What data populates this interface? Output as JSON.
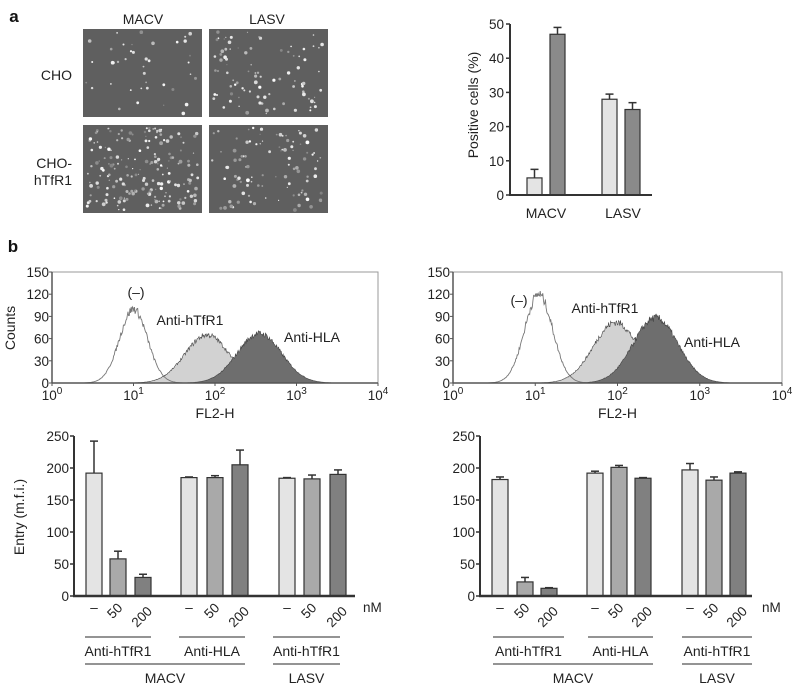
{
  "panel_a": {
    "label": "a",
    "images": {
      "col_labels": [
        "MACV",
        "LASV"
      ],
      "row_labels": [
        [
          "CHO"
        ],
        [
          "CHO-",
          "hTfR1"
        ]
      ]
    }
  },
  "panel_b": {
    "label": "b"
  },
  "chart_data": [
    {
      "type": "bar",
      "panel": "a",
      "categories": [
        "MACV",
        "LASV"
      ],
      "series": [
        {
          "values": [
            5,
            28
          ],
          "errors": [
            2.5,
            1.5
          ],
          "color": "#e4e4e4"
        },
        {
          "values": [
            47,
            25
          ],
          "errors": [
            2,
            2
          ],
          "color": "#8a8a8a"
        }
      ],
      "ylabel": "Positive cells (%)",
      "ylim": [
        0,
        50
      ],
      "yticks": [
        "0",
        "10",
        "20",
        "30",
        "40",
        "50"
      ]
    },
    {
      "type": "area",
      "panel": "b-left-histogram",
      "xlabel": "FL2-H",
      "ylabel": "Counts",
      "xscale": "log",
      "xlim": [
        1,
        10000
      ],
      "xtick_base": "10",
      "xtick_exponents": [
        "0",
        "1",
        "2",
        "3",
        "4"
      ],
      "ylim": [
        0,
        150
      ],
      "yticks": [
        "0",
        "30",
        "60",
        "90",
        "120",
        "150"
      ],
      "series": [
        {
          "label": "(–)",
          "peak_fl2h": 10,
          "peak_count": 100,
          "fill": "none"
        },
        {
          "label": "Anti-hTfR1",
          "peak_fl2h": 80,
          "peak_count": 65,
          "fill": "#d2d2d2"
        },
        {
          "label": "Anti-HLA",
          "peak_fl2h": 350,
          "peak_count": 67,
          "fill": "#6e6e6e"
        }
      ]
    },
    {
      "type": "area",
      "panel": "b-right-histogram",
      "xlabel": "FL2-H",
      "ylabel": "",
      "xscale": "log",
      "xlim": [
        1,
        10000
      ],
      "xtick_base": "10",
      "xtick_exponents": [
        "0",
        "1",
        "2",
        "3",
        "4"
      ],
      "ylim": [
        0,
        150
      ],
      "yticks": [
        "0",
        "30",
        "60",
        "90",
        "120",
        "150"
      ],
      "series": [
        {
          "label": "(–)",
          "peak_fl2h": 11,
          "peak_count": 120,
          "fill": "none"
        },
        {
          "label": "Anti-hTfR1",
          "peak_fl2h": 95,
          "peak_count": 82,
          "fill": "#d2d2d2"
        },
        {
          "label": "Anti-HLA",
          "peak_fl2h": 290,
          "peak_count": 88,
          "fill": "#6e6e6e"
        }
      ]
    },
    {
      "type": "bar",
      "panel": "b-left-bar",
      "ylabel": "Entry (m.f.i.)",
      "ylim": [
        0,
        250
      ],
      "yticks": [
        "0",
        "50",
        "100",
        "150",
        "200",
        "250"
      ],
      "dose_labels": [
        "–",
        "50",
        "200"
      ],
      "dose_unit": "nM",
      "antibody_groups": [
        "Anti-hTfR1",
        "Anti-HLA",
        "Anti-hTfR1"
      ],
      "virus_groups": [
        "MACV",
        "LASV"
      ],
      "values": [
        192,
        58,
        29,
        185,
        185,
        205,
        184,
        183,
        190
      ],
      "errors": [
        50,
        12,
        5,
        1,
        3,
        23,
        1,
        6,
        7
      ],
      "colors": [
        "#e4e4e4",
        "#a9a9a9",
        "#808080"
      ]
    },
    {
      "type": "bar",
      "panel": "b-right-bar",
      "ylabel": "",
      "ylim": [
        0,
        250
      ],
      "yticks": [
        "0",
        "50",
        "100",
        "150",
        "200",
        "250"
      ],
      "dose_labels": [
        "–",
        "50",
        "200"
      ],
      "dose_unit": "nM",
      "antibody_groups": [
        "Anti-hTfR1",
        "Anti-HLA",
        "Anti-hTfR1"
      ],
      "virus_groups": [
        "MACV",
        "LASV"
      ],
      "values": [
        182,
        22,
        12,
        192,
        201,
        184,
        197,
        181,
        192
      ],
      "errors": [
        4,
        7,
        1,
        3,
        3,
        1,
        10,
        5,
        2
      ],
      "colors": [
        "#e4e4e4",
        "#a9a9a9",
        "#808080"
      ]
    }
  ]
}
